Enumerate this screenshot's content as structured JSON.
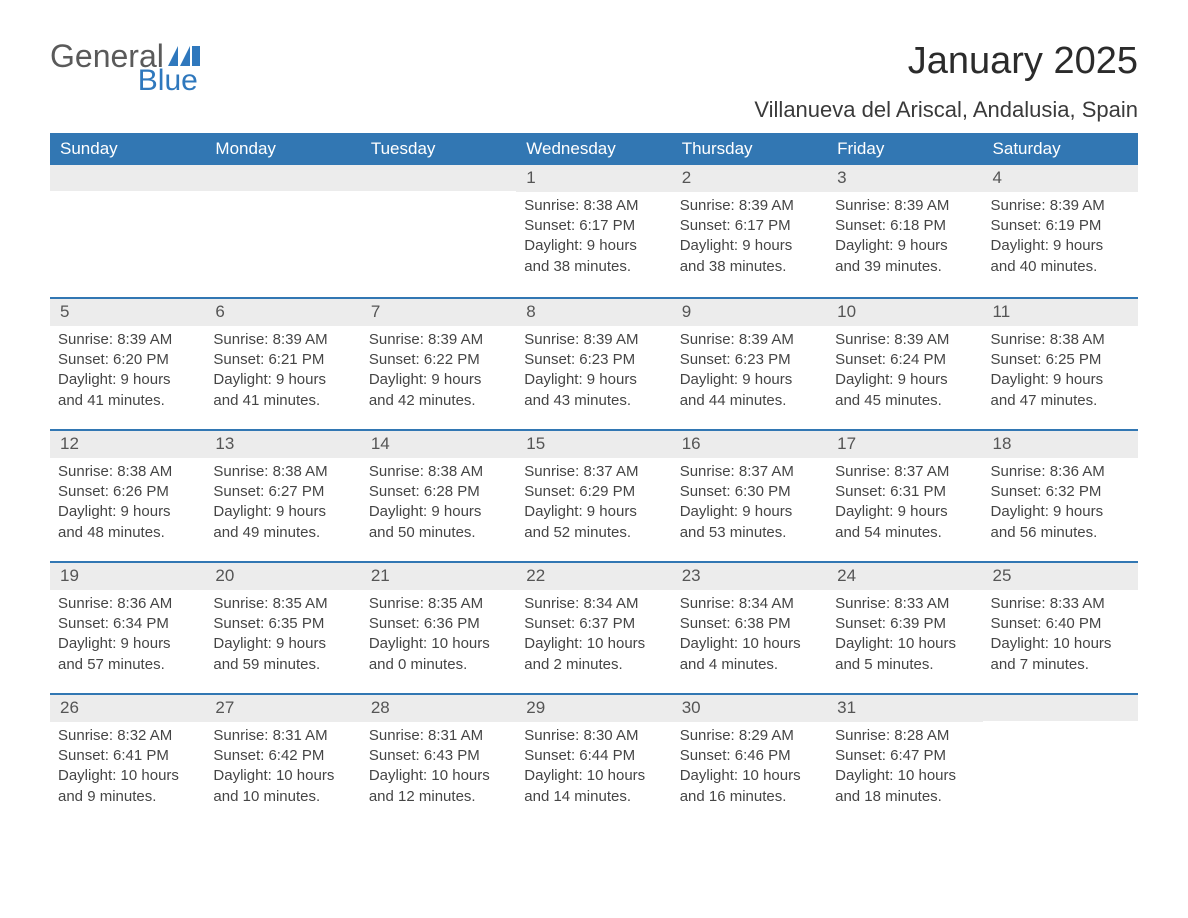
{
  "logo": {
    "word1": "General",
    "word2": "Blue",
    "flag_color": "#2f78bd",
    "text_gray": "#5a5a5a"
  },
  "title": "January 2025",
  "location": "Villanueva del Ariscal, Andalusia, Spain",
  "colors": {
    "header_bg": "#3277b3",
    "header_text": "#ffffff",
    "daynum_bg": "#ececec",
    "week_border": "#3277b3",
    "body_text": "#454545"
  },
  "day_names": [
    "Sunday",
    "Monday",
    "Tuesday",
    "Wednesday",
    "Thursday",
    "Friday",
    "Saturday"
  ],
  "weeks": [
    [
      {
        "day": "",
        "sunrise": "",
        "sunset": "",
        "daylight": ""
      },
      {
        "day": "",
        "sunrise": "",
        "sunset": "",
        "daylight": ""
      },
      {
        "day": "",
        "sunrise": "",
        "sunset": "",
        "daylight": ""
      },
      {
        "day": "1",
        "sunrise": "Sunrise: 8:38 AM",
        "sunset": "Sunset: 6:17 PM",
        "daylight": "Daylight: 9 hours and 38 minutes."
      },
      {
        "day": "2",
        "sunrise": "Sunrise: 8:39 AM",
        "sunset": "Sunset: 6:17 PM",
        "daylight": "Daylight: 9 hours and 38 minutes."
      },
      {
        "day": "3",
        "sunrise": "Sunrise: 8:39 AM",
        "sunset": "Sunset: 6:18 PM",
        "daylight": "Daylight: 9 hours and 39 minutes."
      },
      {
        "day": "4",
        "sunrise": "Sunrise: 8:39 AM",
        "sunset": "Sunset: 6:19 PM",
        "daylight": "Daylight: 9 hours and 40 minutes."
      }
    ],
    [
      {
        "day": "5",
        "sunrise": "Sunrise: 8:39 AM",
        "sunset": "Sunset: 6:20 PM",
        "daylight": "Daylight: 9 hours and 41 minutes."
      },
      {
        "day": "6",
        "sunrise": "Sunrise: 8:39 AM",
        "sunset": "Sunset: 6:21 PM",
        "daylight": "Daylight: 9 hours and 41 minutes."
      },
      {
        "day": "7",
        "sunrise": "Sunrise: 8:39 AM",
        "sunset": "Sunset: 6:22 PM",
        "daylight": "Daylight: 9 hours and 42 minutes."
      },
      {
        "day": "8",
        "sunrise": "Sunrise: 8:39 AM",
        "sunset": "Sunset: 6:23 PM",
        "daylight": "Daylight: 9 hours and 43 minutes."
      },
      {
        "day": "9",
        "sunrise": "Sunrise: 8:39 AM",
        "sunset": "Sunset: 6:23 PM",
        "daylight": "Daylight: 9 hours and 44 minutes."
      },
      {
        "day": "10",
        "sunrise": "Sunrise: 8:39 AM",
        "sunset": "Sunset: 6:24 PM",
        "daylight": "Daylight: 9 hours and 45 minutes."
      },
      {
        "day": "11",
        "sunrise": "Sunrise: 8:38 AM",
        "sunset": "Sunset: 6:25 PM",
        "daylight": "Daylight: 9 hours and 47 minutes."
      }
    ],
    [
      {
        "day": "12",
        "sunrise": "Sunrise: 8:38 AM",
        "sunset": "Sunset: 6:26 PM",
        "daylight": "Daylight: 9 hours and 48 minutes."
      },
      {
        "day": "13",
        "sunrise": "Sunrise: 8:38 AM",
        "sunset": "Sunset: 6:27 PM",
        "daylight": "Daylight: 9 hours and 49 minutes."
      },
      {
        "day": "14",
        "sunrise": "Sunrise: 8:38 AM",
        "sunset": "Sunset: 6:28 PM",
        "daylight": "Daylight: 9 hours and 50 minutes."
      },
      {
        "day": "15",
        "sunrise": "Sunrise: 8:37 AM",
        "sunset": "Sunset: 6:29 PM",
        "daylight": "Daylight: 9 hours and 52 minutes."
      },
      {
        "day": "16",
        "sunrise": "Sunrise: 8:37 AM",
        "sunset": "Sunset: 6:30 PM",
        "daylight": "Daylight: 9 hours and 53 minutes."
      },
      {
        "day": "17",
        "sunrise": "Sunrise: 8:37 AM",
        "sunset": "Sunset: 6:31 PM",
        "daylight": "Daylight: 9 hours and 54 minutes."
      },
      {
        "day": "18",
        "sunrise": "Sunrise: 8:36 AM",
        "sunset": "Sunset: 6:32 PM",
        "daylight": "Daylight: 9 hours and 56 minutes."
      }
    ],
    [
      {
        "day": "19",
        "sunrise": "Sunrise: 8:36 AM",
        "sunset": "Sunset: 6:34 PM",
        "daylight": "Daylight: 9 hours and 57 minutes."
      },
      {
        "day": "20",
        "sunrise": "Sunrise: 8:35 AM",
        "sunset": "Sunset: 6:35 PM",
        "daylight": "Daylight: 9 hours and 59 minutes."
      },
      {
        "day": "21",
        "sunrise": "Sunrise: 8:35 AM",
        "sunset": "Sunset: 6:36 PM",
        "daylight": "Daylight: 10 hours and 0 minutes."
      },
      {
        "day": "22",
        "sunrise": "Sunrise: 8:34 AM",
        "sunset": "Sunset: 6:37 PM",
        "daylight": "Daylight: 10 hours and 2 minutes."
      },
      {
        "day": "23",
        "sunrise": "Sunrise: 8:34 AM",
        "sunset": "Sunset: 6:38 PM",
        "daylight": "Daylight: 10 hours and 4 minutes."
      },
      {
        "day": "24",
        "sunrise": "Sunrise: 8:33 AM",
        "sunset": "Sunset: 6:39 PM",
        "daylight": "Daylight: 10 hours and 5 minutes."
      },
      {
        "day": "25",
        "sunrise": "Sunrise: 8:33 AM",
        "sunset": "Sunset: 6:40 PM",
        "daylight": "Daylight: 10 hours and 7 minutes."
      }
    ],
    [
      {
        "day": "26",
        "sunrise": "Sunrise: 8:32 AM",
        "sunset": "Sunset: 6:41 PM",
        "daylight": "Daylight: 10 hours and 9 minutes."
      },
      {
        "day": "27",
        "sunrise": "Sunrise: 8:31 AM",
        "sunset": "Sunset: 6:42 PM",
        "daylight": "Daylight: 10 hours and 10 minutes."
      },
      {
        "day": "28",
        "sunrise": "Sunrise: 8:31 AM",
        "sunset": "Sunset: 6:43 PM",
        "daylight": "Daylight: 10 hours and 12 minutes."
      },
      {
        "day": "29",
        "sunrise": "Sunrise: 8:30 AM",
        "sunset": "Sunset: 6:44 PM",
        "daylight": "Daylight: 10 hours and 14 minutes."
      },
      {
        "day": "30",
        "sunrise": "Sunrise: 8:29 AM",
        "sunset": "Sunset: 6:46 PM",
        "daylight": "Daylight: 10 hours and 16 minutes."
      },
      {
        "day": "31",
        "sunrise": "Sunrise: 8:28 AM",
        "sunset": "Sunset: 6:47 PM",
        "daylight": "Daylight: 10 hours and 18 minutes."
      },
      {
        "day": "",
        "sunrise": "",
        "sunset": "",
        "daylight": ""
      }
    ]
  ]
}
